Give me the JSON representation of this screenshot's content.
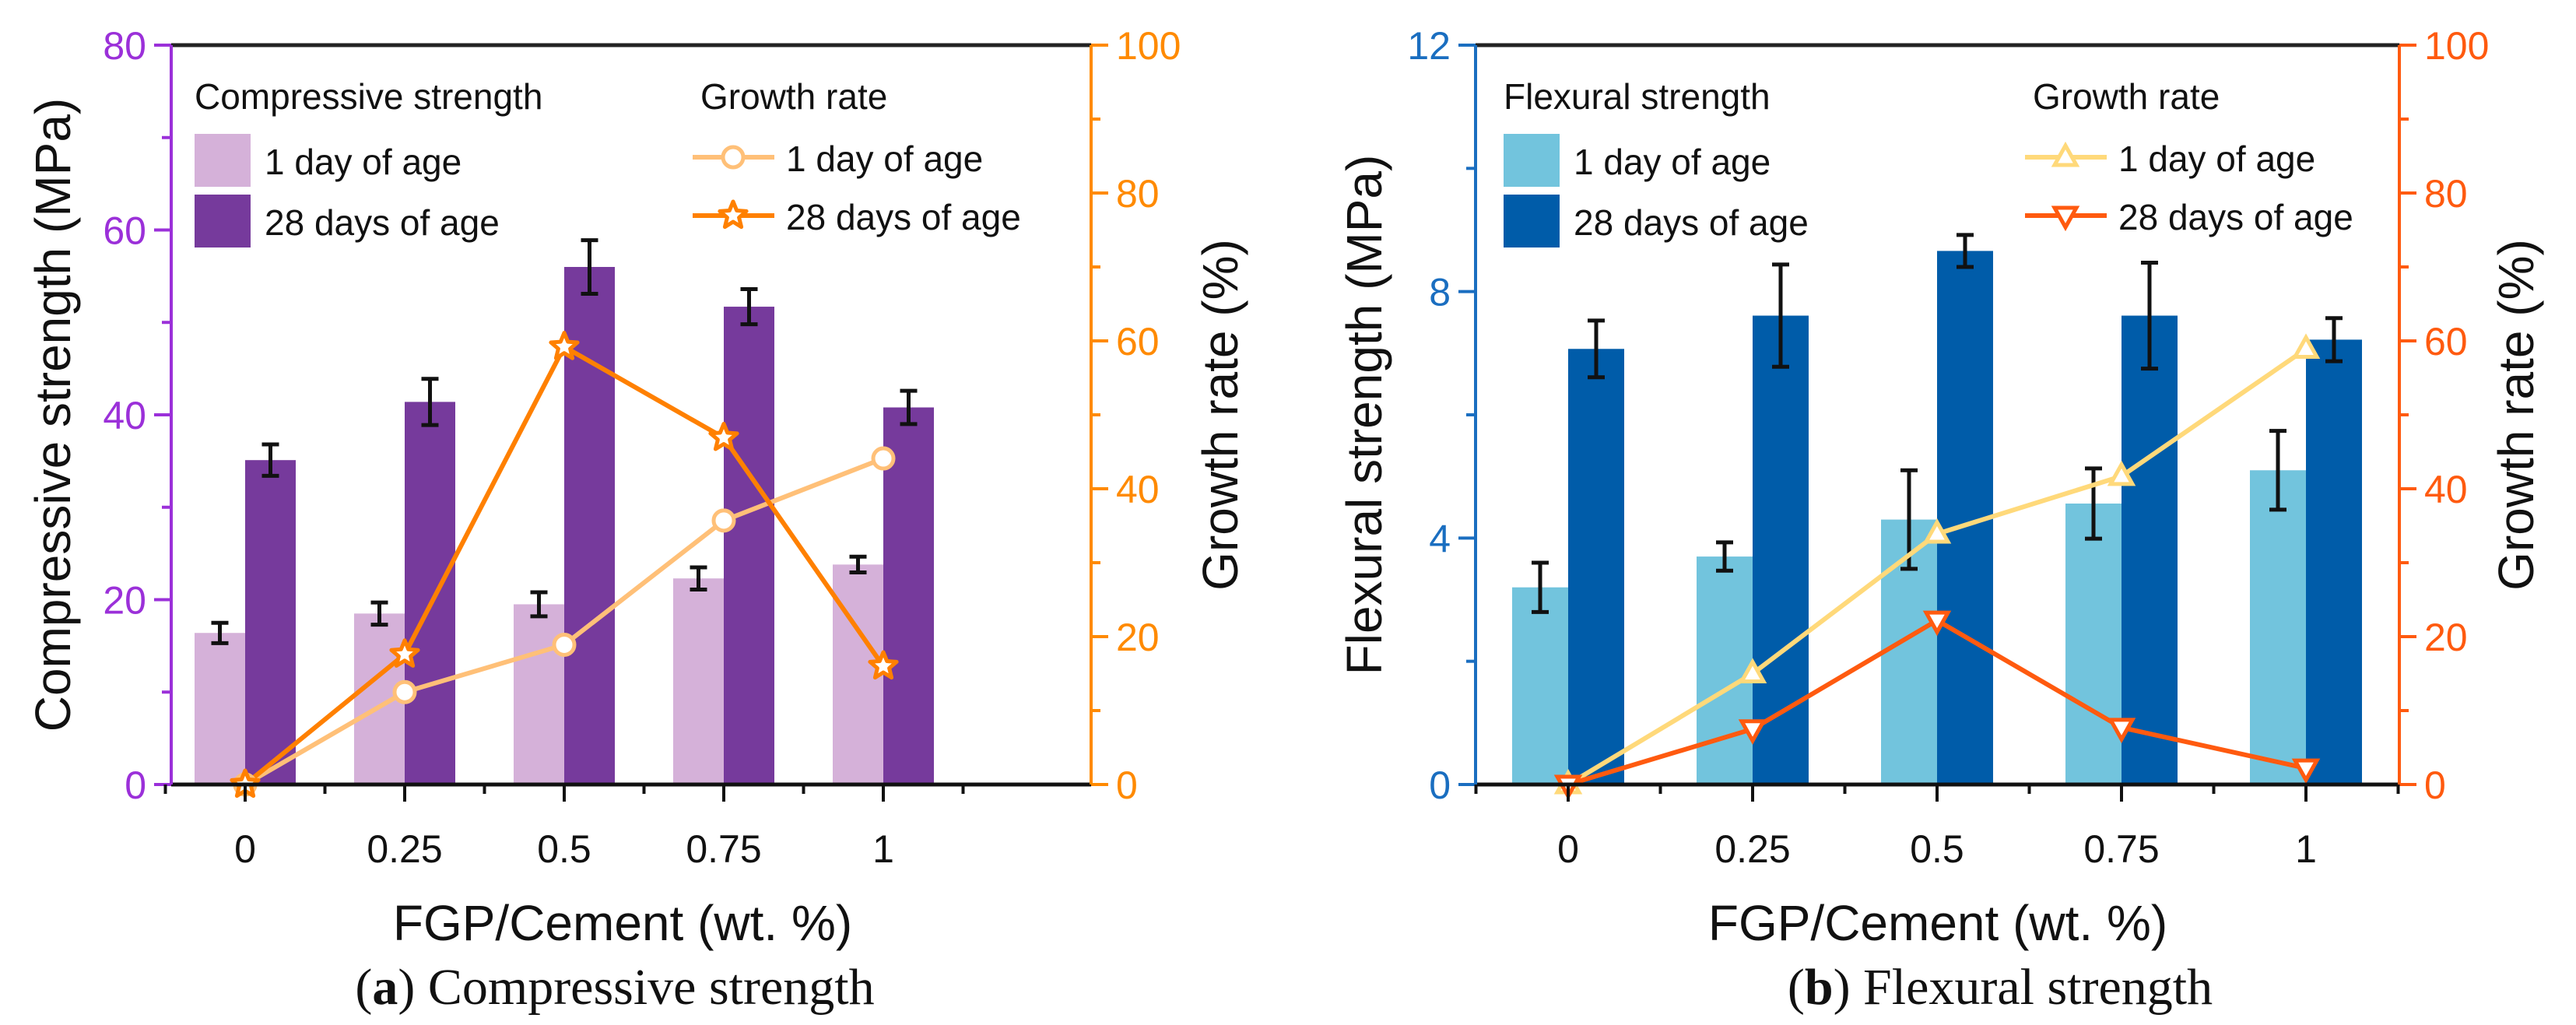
{
  "chart_data": [
    {
      "type": "bar",
      "panel": "a",
      "caption_letter": "a",
      "caption_text": " Compressive strength",
      "xlabel": "FGP/Cement (wt. %)",
      "ylabel": "Compressive strength (MPa)",
      "y2label": "Growth rate (%)",
      "categories": [
        "0",
        "0.25",
        "0.5",
        "0.75",
        "1"
      ],
      "ylim": [
        0,
        80
      ],
      "yticks": [
        0,
        20,
        40,
        60,
        80
      ],
      "y2lim": [
        0,
        100
      ],
      "y2ticks": [
        0,
        20,
        40,
        60,
        80,
        100
      ],
      "grid": false,
      "colors": {
        "left_axis": "#9B30D9",
        "right_axis": "#FF8A00"
      },
      "legend": {
        "bar_title": "Compressive strength",
        "line_title": "Growth rate",
        "placement": "top"
      },
      "bar_series": [
        {
          "name": "1 day of age",
          "color": "#D5B1D9",
          "values": [
            16.4,
            18.5,
            19.5,
            22.3,
            23.8
          ],
          "errors": [
            1.1,
            1.2,
            1.3,
            1.2,
            0.85
          ]
        },
        {
          "name": "28 days of age",
          "color": "#763A9C",
          "values": [
            35.1,
            41.4,
            56.0,
            51.7,
            40.8
          ],
          "errors": [
            1.7,
            2.5,
            2.9,
            1.9,
            1.8
          ]
        }
      ],
      "line_series": [
        {
          "name": "1 day of age",
          "color": "#FFC078",
          "marker": "circle",
          "values": [
            0,
            12.5,
            18.9,
            35.7,
            44.1
          ]
        },
        {
          "name": "28 days of age",
          "color": "#FF8000",
          "marker": "star",
          "values": [
            0,
            17.6,
            59.2,
            46.9,
            16.0
          ]
        }
      ]
    },
    {
      "type": "bar",
      "panel": "b",
      "caption_letter": "b",
      "caption_text": " Flexural strength",
      "xlabel": "FGP/Cement (wt. %)",
      "ylabel": "Flexural strength (MPa)",
      "y2label": "Growth rate (%)",
      "categories": [
        "0",
        "0.25",
        "0.5",
        "0.75",
        "1"
      ],
      "ylim": [
        0,
        12
      ],
      "yticks": [
        0,
        4,
        8,
        12
      ],
      "y2lim": [
        0,
        100
      ],
      "y2ticks": [
        0,
        20,
        40,
        60,
        80,
        100
      ],
      "grid": false,
      "colors": {
        "left_axis": "#1A6EC0",
        "right_axis": "#FF5A0F"
      },
      "legend": {
        "bar_title": "Flexural strength",
        "line_title": "Growth rate",
        "placement": "top"
      },
      "bar_series": [
        {
          "name": "1 day of age",
          "color": "#72C4DD",
          "values": [
            3.2,
            3.7,
            4.3,
            4.56,
            5.1
          ],
          "errors": [
            0.4,
            0.23,
            0.8,
            0.57,
            0.64
          ]
        },
        {
          "name": "28 days of age",
          "color": "#005CA9",
          "values": [
            7.07,
            7.61,
            8.66,
            7.61,
            7.22
          ],
          "errors": [
            0.46,
            0.83,
            0.26,
            0.86,
            0.35
          ]
        }
      ],
      "line_series": [
        {
          "name": "1 day of age",
          "color": "#FFD97A",
          "marker": "triangle-up",
          "values": [
            0,
            15.0,
            33.9,
            41.7,
            58.9
          ]
        },
        {
          "name": "28 days of age",
          "color": "#FF5A0F",
          "marker": "triangle-down",
          "values": [
            0,
            7.5,
            22.2,
            7.7,
            2.2
          ]
        }
      ]
    }
  ]
}
